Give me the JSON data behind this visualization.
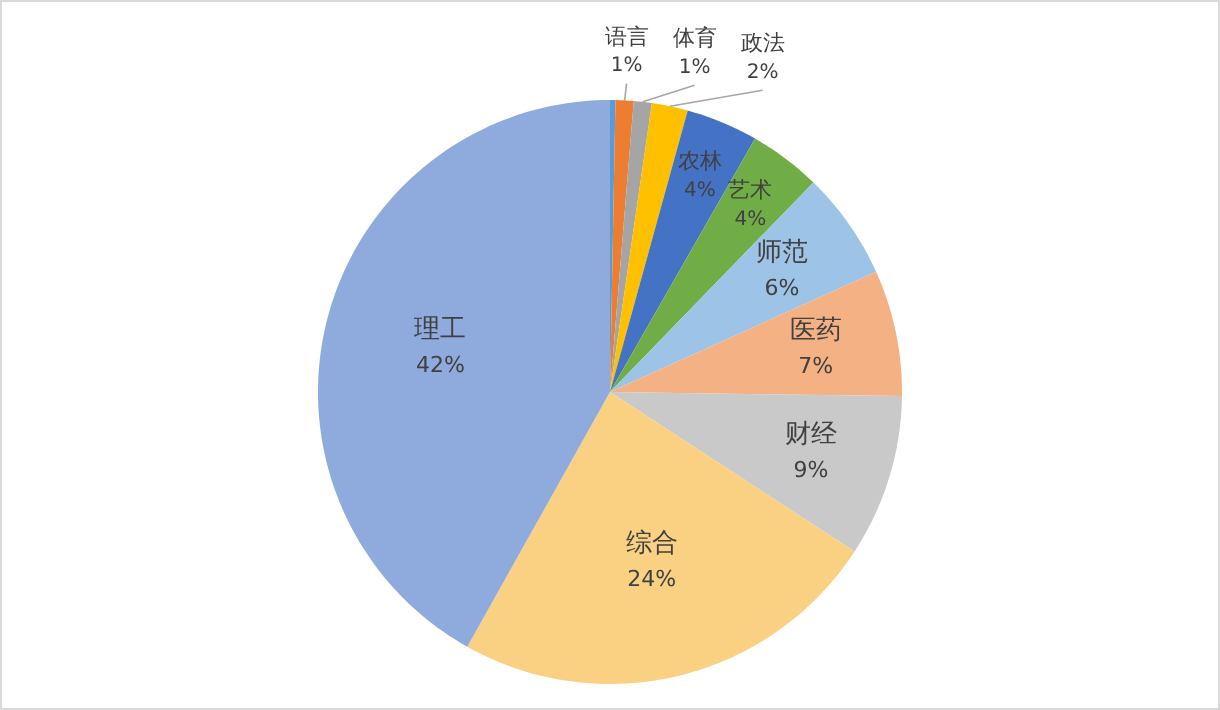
{
  "chart_data": {
    "type": "pie",
    "categories": [
      null,
      "语言",
      "体育",
      "政法",
      "农林",
      "艺术",
      "师范",
      "医药",
      "财经",
      "综合",
      "理工"
    ],
    "values": [
      0.3,
      1,
      1,
      2,
      4,
      4,
      6,
      7,
      9,
      24,
      42
    ],
    "value_labels": [
      null,
      "1%",
      "1%",
      "2%",
      "4%",
      "4%",
      "6%",
      "7%",
      "9%",
      "24%",
      "42%"
    ],
    "colors": [
      "#5b9bd5",
      "#ed7d31",
      "#a5a5a5",
      "#ffc000",
      "#4472c4",
      "#70ad47",
      "#9dc3e6",
      "#f4b183",
      "#c9c9c9",
      "#fad183",
      "#8faadc"
    ],
    "legend": false
  }
}
